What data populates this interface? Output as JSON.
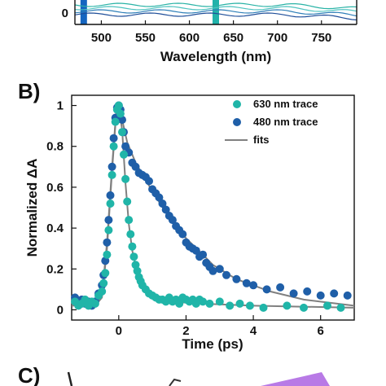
{
  "chart_data": [
    {
      "type": "line",
      "panel_label": "",
      "xlabel": "Wavelength (nm)",
      "ylabel": "",
      "xlim": [
        470,
        790
      ],
      "x_ticks": [
        500,
        550,
        600,
        650,
        700,
        750
      ],
      "y_ticks": [
        0
      ],
      "markers": [
        {
          "x": 480,
          "color": "#1565c0"
        },
        {
          "x": 630,
          "color": "#20b2aa"
        }
      ],
      "colors": [
        "#2ab3a6",
        "#4fc3c0",
        "#2e7fb8",
        "#1f4e99"
      ]
    },
    {
      "type": "scatter",
      "panel_label": "B)",
      "xlabel": "Time (ps)",
      "ylabel": "Normalized ΔA",
      "xlim": [
        -1.4,
        7.0
      ],
      "ylim": [
        -0.05,
        1.05
      ],
      "x_ticks": [
        0,
        2,
        4,
        6
      ],
      "y_ticks": [
        0,
        0.2,
        0.4,
        0.6,
        0.8,
        1
      ],
      "legend_position": "top-right",
      "series": [
        {
          "name": "630 nm trace",
          "color": "#20b5a8",
          "points": [
            [
              -1.3,
              0.04
            ],
            [
              -1.2,
              0.02
            ],
            [
              -1.1,
              0.03
            ],
            [
              -1.0,
              0.05
            ],
            [
              -0.9,
              0.02
            ],
            [
              -0.8,
              0.04
            ],
            [
              -0.7,
              0.03
            ],
            [
              -0.6,
              0.07
            ],
            [
              -0.5,
              0.09
            ],
            [
              -0.45,
              0.13
            ],
            [
              -0.4,
              0.18
            ],
            [
              -0.35,
              0.27
            ],
            [
              -0.3,
              0.39
            ],
            [
              -0.25,
              0.52
            ],
            [
              -0.2,
              0.66
            ],
            [
              -0.15,
              0.8
            ],
            [
              -0.1,
              0.92
            ],
            [
              -0.05,
              0.98
            ],
            [
              0.0,
              1.0
            ],
            [
              0.05,
              0.96
            ],
            [
              0.1,
              0.87
            ],
            [
              0.15,
              0.76
            ],
            [
              0.2,
              0.64
            ],
            [
              0.25,
              0.53
            ],
            [
              0.3,
              0.44
            ],
            [
              0.35,
              0.37
            ],
            [
              0.4,
              0.31
            ],
            [
              0.45,
              0.26
            ],
            [
              0.5,
              0.22
            ],
            [
              0.55,
              0.19
            ],
            [
              0.6,
              0.16
            ],
            [
              0.65,
              0.14
            ],
            [
              0.7,
              0.12
            ],
            [
              0.8,
              0.1
            ],
            [
              0.9,
              0.08
            ],
            [
              1.0,
              0.07
            ],
            [
              1.1,
              0.06
            ],
            [
              1.2,
              0.05
            ],
            [
              1.3,
              0.05
            ],
            [
              1.4,
              0.04
            ],
            [
              1.5,
              0.06
            ],
            [
              1.6,
              0.04
            ],
            [
              1.7,
              0.05
            ],
            [
              1.8,
              0.03
            ],
            [
              1.9,
              0.06
            ],
            [
              2.0,
              0.05
            ],
            [
              2.1,
              0.04
            ],
            [
              2.2,
              0.05
            ],
            [
              2.3,
              0.03
            ],
            [
              2.4,
              0.05
            ],
            [
              2.5,
              0.04
            ],
            [
              2.7,
              0.03
            ],
            [
              3.0,
              0.04
            ],
            [
              3.3,
              0.02
            ],
            [
              3.6,
              0.03
            ],
            [
              3.9,
              0.02
            ],
            [
              4.3,
              0.01
            ],
            [
              5.0,
              0.02
            ],
            [
              5.5,
              0.01
            ],
            [
              6.2,
              0.02
            ],
            [
              6.6,
              0.01
            ]
          ]
        },
        {
          "name": "480 nm trace",
          "color": "#1f5fa8",
          "points": [
            [
              -1.3,
              0.06
            ],
            [
              -1.2,
              0.04
            ],
            [
              -1.1,
              0.05
            ],
            [
              -1.0,
              0.03
            ],
            [
              -0.9,
              0.04
            ],
            [
              -0.8,
              0.02
            ],
            [
              -0.7,
              0.04
            ],
            [
              -0.6,
              0.08
            ],
            [
              -0.5,
              0.12
            ],
            [
              -0.45,
              0.17
            ],
            [
              -0.4,
              0.24
            ],
            [
              -0.35,
              0.33
            ],
            [
              -0.3,
              0.44
            ],
            [
              -0.25,
              0.56
            ],
            [
              -0.2,
              0.7
            ],
            [
              -0.15,
              0.84
            ],
            [
              -0.1,
              0.94
            ],
            [
              -0.05,
              0.99
            ],
            [
              0.0,
              1.0
            ],
            [
              0.05,
              0.98
            ],
            [
              0.1,
              0.93
            ],
            [
              0.15,
              0.87
            ],
            [
              0.2,
              0.8
            ],
            [
              0.3,
              0.77
            ],
            [
              0.4,
              0.72
            ],
            [
              0.5,
              0.7
            ],
            [
              0.6,
              0.67
            ],
            [
              0.7,
              0.66
            ],
            [
              0.8,
              0.65
            ],
            [
              0.9,
              0.63
            ],
            [
              1.0,
              0.59
            ],
            [
              1.1,
              0.57
            ],
            [
              1.2,
              0.55
            ],
            [
              1.3,
              0.52
            ],
            [
              1.4,
              0.49
            ],
            [
              1.5,
              0.46
            ],
            [
              1.6,
              0.44
            ],
            [
              1.7,
              0.41
            ],
            [
              1.8,
              0.39
            ],
            [
              1.9,
              0.37
            ],
            [
              2.0,
              0.33
            ],
            [
              2.1,
              0.31
            ],
            [
              2.2,
              0.3
            ],
            [
              2.3,
              0.29
            ],
            [
              2.4,
              0.26
            ],
            [
              2.5,
              0.27
            ],
            [
              2.6,
              0.23
            ],
            [
              2.7,
              0.21
            ],
            [
              2.8,
              0.19
            ],
            [
              3.0,
              0.2
            ],
            [
              3.2,
              0.17
            ],
            [
              3.5,
              0.15
            ],
            [
              3.8,
              0.13
            ],
            [
              4.0,
              0.12
            ],
            [
              4.4,
              0.1
            ],
            [
              4.8,
              0.11
            ],
            [
              5.2,
              0.08
            ],
            [
              5.6,
              0.09
            ],
            [
              6.0,
              0.07
            ],
            [
              6.4,
              0.08
            ],
            [
              6.8,
              0.07
            ]
          ]
        },
        {
          "name": "fits",
          "color": "#808080",
          "fit_curves": [
            [
              [
                -1.4,
                0.02
              ],
              [
                -0.7,
                0.02
              ],
              [
                -0.5,
                0.06
              ],
              [
                -0.35,
                0.3
              ],
              [
                -0.2,
                0.68
              ],
              [
                -0.08,
                0.95
              ],
              [
                0.0,
                1.0
              ],
              [
                0.1,
                0.88
              ],
              [
                0.2,
                0.62
              ],
              [
                0.3,
                0.42
              ],
              [
                0.4,
                0.29
              ],
              [
                0.55,
                0.18
              ],
              [
                0.75,
                0.11
              ],
              [
                1.0,
                0.07
              ],
              [
                1.5,
                0.04
              ],
              [
                2.5,
                0.03
              ],
              [
                4.0,
                0.02
              ],
              [
                7.0,
                0.01
              ]
            ],
            [
              [
                -1.4,
                0.03
              ],
              [
                -0.7,
                0.03
              ],
              [
                -0.5,
                0.07
              ],
              [
                -0.35,
                0.33
              ],
              [
                -0.2,
                0.7
              ],
              [
                -0.08,
                0.96
              ],
              [
                0.0,
                1.0
              ],
              [
                0.1,
                0.93
              ],
              [
                0.25,
                0.82
              ],
              [
                0.5,
                0.72
              ],
              [
                1.0,
                0.58
              ],
              [
                1.5,
                0.45
              ],
              [
                2.0,
                0.35
              ],
              [
                2.5,
                0.27
              ],
              [
                2.8,
                0.22
              ],
              [
                3.5,
                0.15
              ],
              [
                4.5,
                0.09
              ],
              [
                5.5,
                0.05
              ],
              [
                7.0,
                0.02
              ]
            ]
          ]
        }
      ]
    },
    {
      "type": "other",
      "panel_label": "C)"
    }
  ]
}
